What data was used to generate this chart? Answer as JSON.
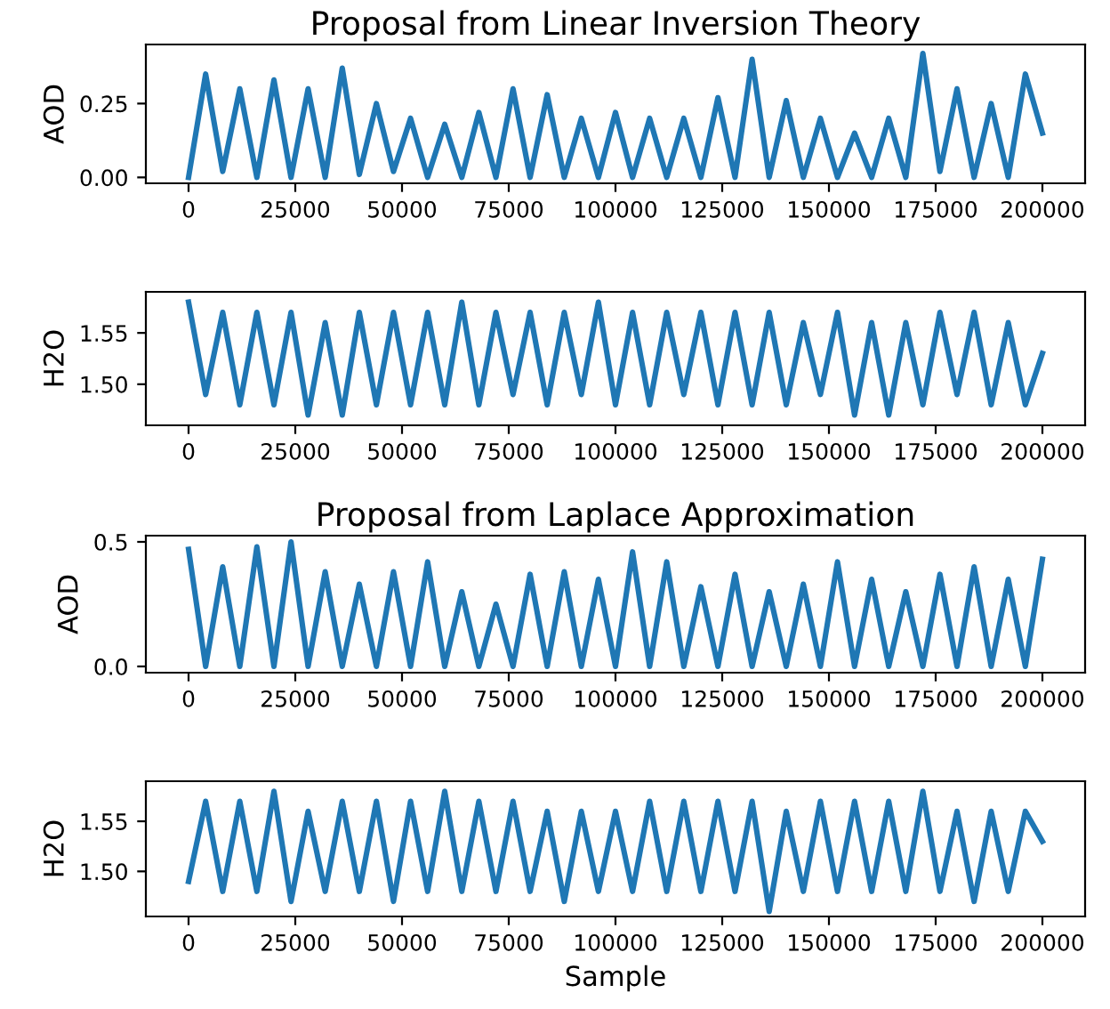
{
  "chart_data": [
    {
      "type": "line",
      "title": "Proposal from Linear Inversion Theory",
      "ylabel": "AOD",
      "x": [
        0,
        4000,
        8000,
        12000,
        16000,
        20000,
        24000,
        28000,
        32000,
        36000,
        40000,
        44000,
        48000,
        52000,
        56000,
        60000,
        64000,
        68000,
        72000,
        76000,
        80000,
        84000,
        88000,
        92000,
        96000,
        100000,
        104000,
        108000,
        112000,
        116000,
        120000,
        124000,
        128000,
        132000,
        136000,
        140000,
        144000,
        148000,
        152000,
        156000,
        160000,
        164000,
        168000,
        172000,
        176000,
        180000,
        184000,
        188000,
        192000,
        196000,
        200000
      ],
      "series": [
        {
          "color": "#1f77b4",
          "values": [
            0.0,
            0.35,
            0.02,
            0.3,
            0.0,
            0.33,
            0.0,
            0.3,
            0.0,
            0.37,
            0.01,
            0.25,
            0.02,
            0.2,
            0.0,
            0.18,
            0.0,
            0.22,
            0.0,
            0.3,
            0.0,
            0.28,
            0.0,
            0.2,
            0.0,
            0.22,
            0.0,
            0.2,
            0.0,
            0.2,
            0.0,
            0.27,
            0.0,
            0.4,
            0.0,
            0.26,
            0.0,
            0.2,
            0.0,
            0.15,
            0.0,
            0.2,
            0.0,
            0.42,
            0.02,
            0.3,
            0.0,
            0.25,
            0.0,
            0.35,
            0.15
          ]
        }
      ],
      "xlim": [
        -10000,
        210000
      ],
      "ylim": [
        -0.02,
        0.45
      ],
      "xticks": [
        0,
        25000,
        50000,
        75000,
        100000,
        125000,
        150000,
        175000,
        200000
      ],
      "yticks": [
        {
          "value": 0,
          "label": "0.00"
        },
        {
          "value": 0.25,
          "label": "0.25"
        }
      ],
      "grid": false
    },
    {
      "type": "line",
      "ylabel": "H2O",
      "x": [
        0,
        4000,
        8000,
        12000,
        16000,
        20000,
        24000,
        28000,
        32000,
        36000,
        40000,
        44000,
        48000,
        52000,
        56000,
        60000,
        64000,
        68000,
        72000,
        76000,
        80000,
        84000,
        88000,
        92000,
        96000,
        100000,
        104000,
        108000,
        112000,
        116000,
        120000,
        124000,
        128000,
        132000,
        136000,
        140000,
        144000,
        148000,
        152000,
        156000,
        160000,
        164000,
        168000,
        172000,
        176000,
        180000,
        184000,
        188000,
        192000,
        196000,
        200000
      ],
      "series": [
        {
          "color": "#1f77b4",
          "values": [
            1.58,
            1.49,
            1.57,
            1.48,
            1.57,
            1.48,
            1.57,
            1.47,
            1.56,
            1.47,
            1.57,
            1.48,
            1.57,
            1.48,
            1.57,
            1.48,
            1.58,
            1.48,
            1.57,
            1.49,
            1.57,
            1.48,
            1.57,
            1.49,
            1.58,
            1.48,
            1.57,
            1.48,
            1.57,
            1.49,
            1.57,
            1.48,
            1.57,
            1.48,
            1.57,
            1.48,
            1.56,
            1.49,
            1.57,
            1.47,
            1.56,
            1.47,
            1.56,
            1.48,
            1.57,
            1.49,
            1.57,
            1.48,
            1.56,
            1.48,
            1.53
          ]
        }
      ],
      "xlim": [
        -10000,
        210000
      ],
      "ylim": [
        1.46,
        1.59
      ],
      "xticks": [
        0,
        25000,
        50000,
        75000,
        100000,
        125000,
        150000,
        175000,
        200000
      ],
      "yticks": [
        {
          "value": 1.5,
          "label": "1.50"
        },
        {
          "value": 1.55,
          "label": "1.55"
        }
      ],
      "grid": false
    },
    {
      "type": "line",
      "title": "Proposal from Laplace Approximation",
      "ylabel": "AOD",
      "x": [
        0,
        4000,
        8000,
        12000,
        16000,
        20000,
        24000,
        28000,
        32000,
        36000,
        40000,
        44000,
        48000,
        52000,
        56000,
        60000,
        64000,
        68000,
        72000,
        76000,
        80000,
        84000,
        88000,
        92000,
        96000,
        100000,
        104000,
        108000,
        112000,
        116000,
        120000,
        124000,
        128000,
        132000,
        136000,
        140000,
        144000,
        148000,
        152000,
        156000,
        160000,
        164000,
        168000,
        172000,
        176000,
        180000,
        184000,
        188000,
        192000,
        196000,
        200000
      ],
      "series": [
        {
          "color": "#1f77b4",
          "values": [
            0.47,
            0.0,
            0.4,
            0.0,
            0.48,
            0.0,
            0.5,
            0.0,
            0.38,
            0.0,
            0.33,
            0.0,
            0.38,
            0.0,
            0.42,
            0.0,
            0.3,
            0.0,
            0.25,
            0.0,
            0.37,
            0.0,
            0.38,
            0.0,
            0.35,
            0.0,
            0.46,
            0.0,
            0.42,
            0.0,
            0.32,
            0.0,
            0.37,
            0.0,
            0.3,
            0.0,
            0.33,
            0.0,
            0.42,
            0.0,
            0.35,
            0.0,
            0.3,
            0.0,
            0.37,
            0.0,
            0.4,
            0.0,
            0.35,
            0.0,
            0.43
          ]
        }
      ],
      "xlim": [
        -10000,
        210000
      ],
      "ylim": [
        -0.025,
        0.525
      ],
      "xticks": [
        0,
        25000,
        50000,
        75000,
        100000,
        125000,
        150000,
        175000,
        200000
      ],
      "yticks": [
        {
          "value": 0,
          "label": "0.0"
        },
        {
          "value": 0.5,
          "label": "0.5"
        }
      ],
      "grid": false
    },
    {
      "type": "line",
      "ylabel": "H2O",
      "xlabel": "Sample",
      "x": [
        0,
        4000,
        8000,
        12000,
        16000,
        20000,
        24000,
        28000,
        32000,
        36000,
        40000,
        44000,
        48000,
        52000,
        56000,
        60000,
        64000,
        68000,
        72000,
        76000,
        80000,
        84000,
        88000,
        92000,
        96000,
        100000,
        104000,
        108000,
        112000,
        116000,
        120000,
        124000,
        128000,
        132000,
        136000,
        140000,
        144000,
        148000,
        152000,
        156000,
        160000,
        164000,
        168000,
        172000,
        176000,
        180000,
        184000,
        188000,
        192000,
        196000,
        200000
      ],
      "series": [
        {
          "color": "#1f77b4",
          "values": [
            1.49,
            1.57,
            1.48,
            1.57,
            1.48,
            1.58,
            1.47,
            1.56,
            1.48,
            1.57,
            1.48,
            1.57,
            1.47,
            1.57,
            1.48,
            1.58,
            1.48,
            1.57,
            1.48,
            1.57,
            1.48,
            1.56,
            1.47,
            1.56,
            1.48,
            1.56,
            1.48,
            1.57,
            1.48,
            1.57,
            1.48,
            1.57,
            1.48,
            1.57,
            1.46,
            1.56,
            1.48,
            1.57,
            1.48,
            1.57,
            1.48,
            1.57,
            1.48,
            1.58,
            1.48,
            1.56,
            1.47,
            1.56,
            1.48,
            1.56,
            1.53
          ]
        }
      ],
      "xlim": [
        -10000,
        210000
      ],
      "ylim": [
        1.455,
        1.59
      ],
      "xticks": [
        0,
        25000,
        50000,
        75000,
        100000,
        125000,
        150000,
        175000,
        200000
      ],
      "yticks": [
        {
          "value": 1.5,
          "label": "1.50"
        },
        {
          "value": 1.55,
          "label": "1.55"
        }
      ],
      "grid": false
    }
  ]
}
